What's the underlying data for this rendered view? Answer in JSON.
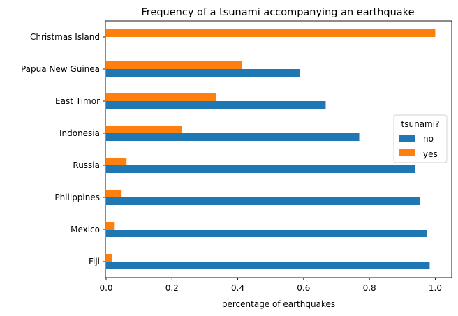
{
  "chart_data": {
    "type": "bar",
    "orientation": "horizontal",
    "title": "Frequency of a tsunami accompanying an earthquake",
    "xlabel": "percentage of earthquakes",
    "ylabel": "",
    "xlim": [
      0,
      1.05
    ],
    "xticks": [
      0.0,
      0.2,
      0.4,
      0.6,
      0.8,
      1.0
    ],
    "xtick_labels": [
      "0.0",
      "0.2",
      "0.4",
      "0.6",
      "0.8",
      "1.0"
    ],
    "categories": [
      "Fiji",
      "Mexico",
      "Philippines",
      "Russia",
      "Indonesia",
      "East Timor",
      "Papua New Guinea",
      "Christmas Island"
    ],
    "series": [
      {
        "name": "no",
        "color": "#1f77b4",
        "values": [
          0.983,
          0.974,
          0.953,
          0.938,
          0.769,
          0.667,
          0.588,
          0.0
        ]
      },
      {
        "name": "yes",
        "color": "#ff7f0e",
        "values": [
          0.017,
          0.026,
          0.047,
          0.062,
          0.231,
          0.333,
          0.412,
          1.0
        ]
      }
    ],
    "legend": {
      "title": "tsunami?",
      "placement": "center-right",
      "entries": [
        "no",
        "yes"
      ]
    },
    "grid": false
  }
}
